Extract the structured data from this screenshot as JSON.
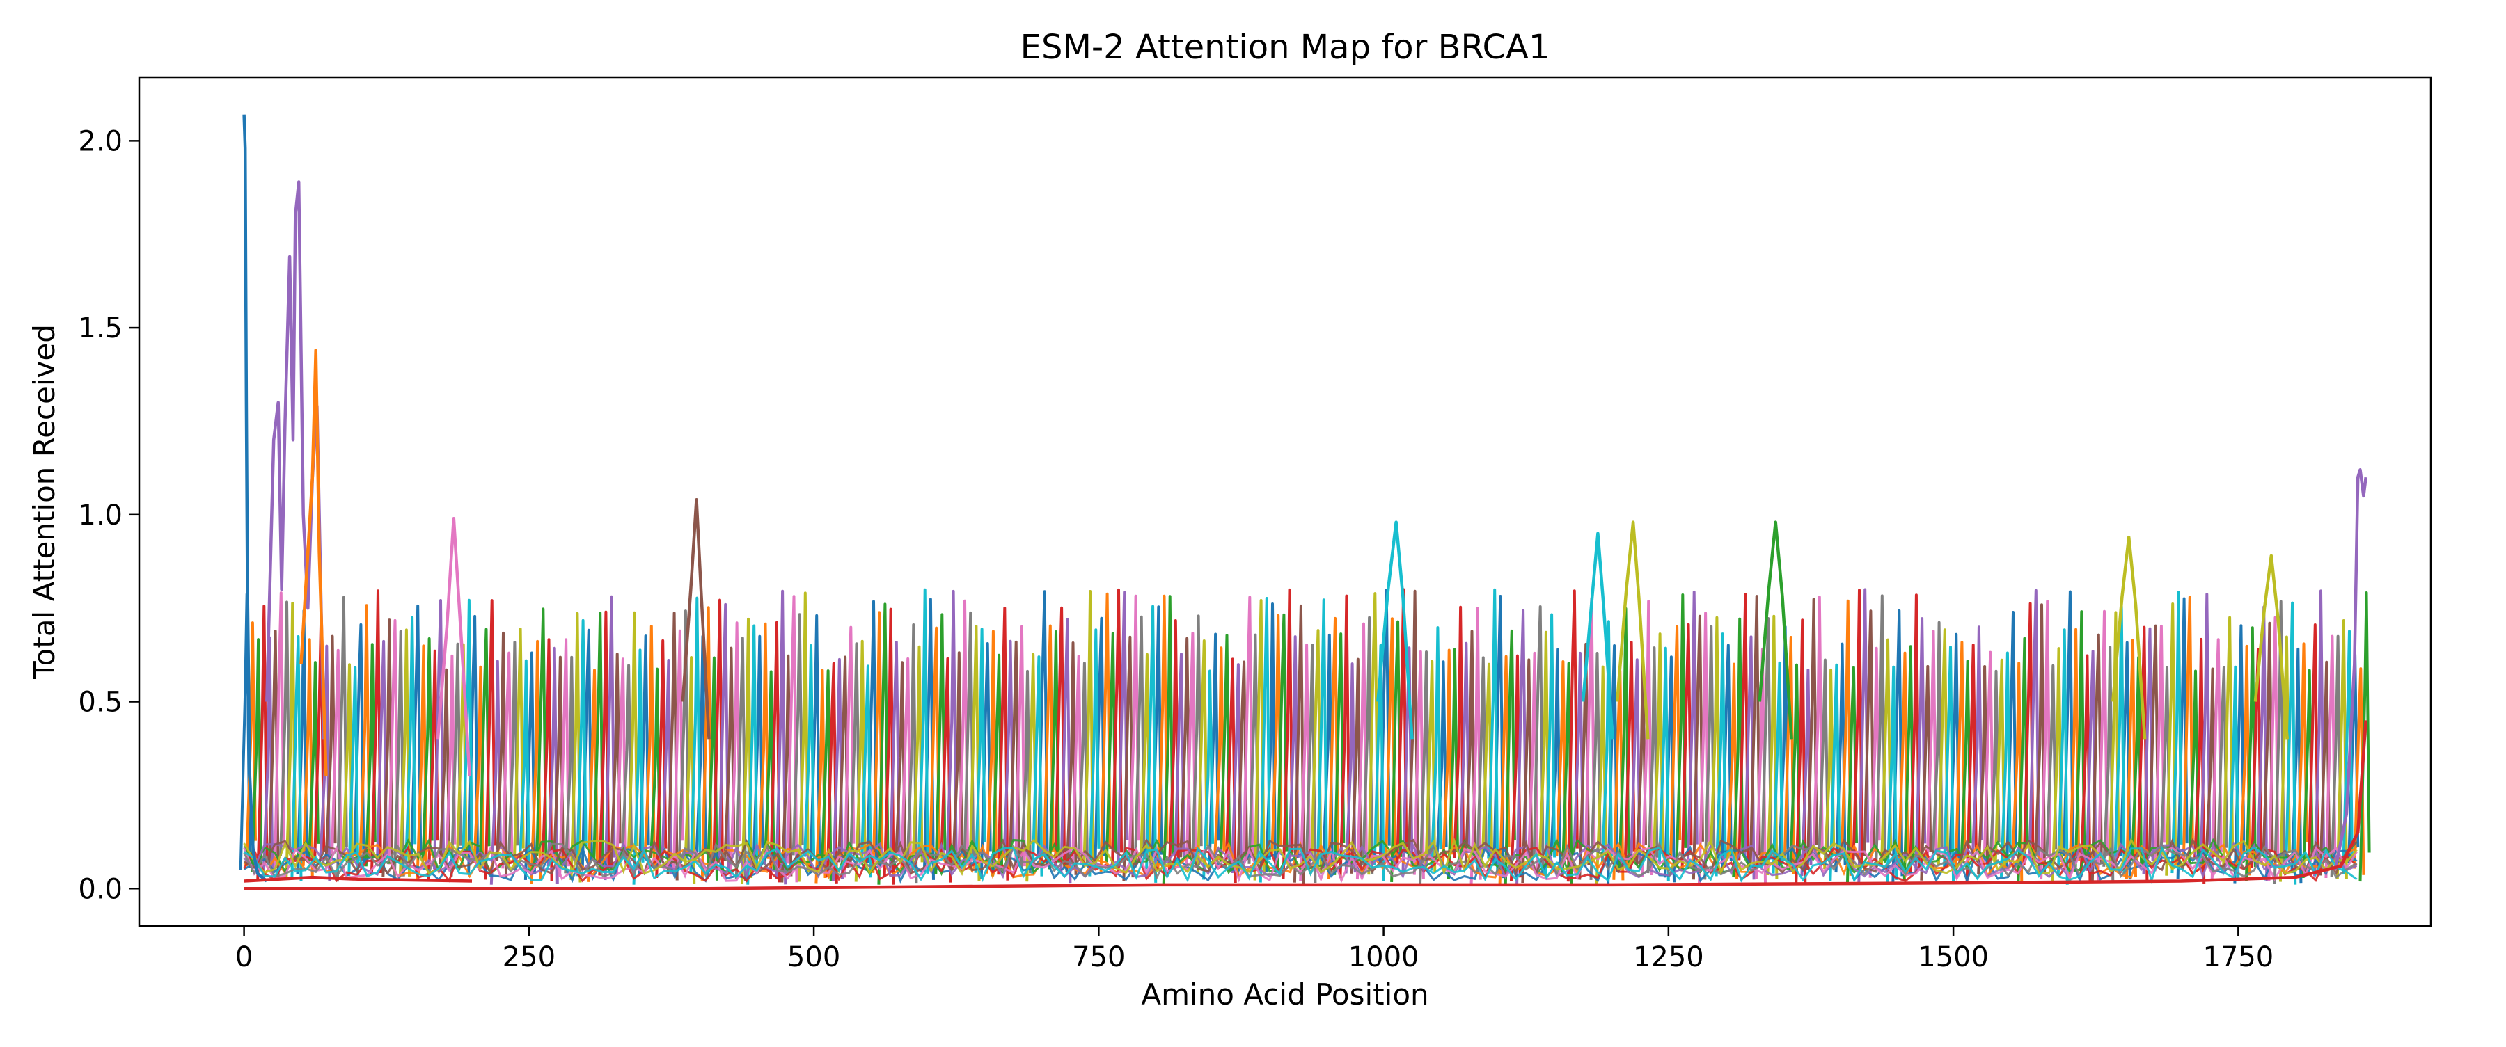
{
  "chart_data": {
    "type": "line",
    "title": "ESM-2 Attention Map for BRCA1",
    "xlabel": "Amino Acid Position",
    "ylabel": "Total Attention Received",
    "xlim": [
      -92,
      1919
    ],
    "ylim": [
      -0.1,
      2.17
    ],
    "xticks": [
      0,
      250,
      500,
      750,
      1000,
      1250,
      1500,
      1750
    ],
    "xtick_labels": [
      "0",
      "250",
      "500",
      "750",
      "1000",
      "1250",
      "1500",
      "1750"
    ],
    "yticks": [
      0.0,
      0.5,
      1.0,
      1.5,
      2.0
    ],
    "ytick_labels": [
      "0.0",
      "0.5",
      "1.0",
      "1.5",
      "2.0"
    ],
    "grid": false,
    "legend": "none",
    "sequence_length": 1863,
    "palette": [
      "#1f77b4",
      "#ff7f0e",
      "#2ca02c",
      "#d62728",
      "#9467bd",
      "#8c564b",
      "#e377c2",
      "#7f7f7f",
      "#bcbd22",
      "#17becf"
    ],
    "baseline_level": 0.01,
    "typical_peak_range": [
      0.58,
      0.8
    ],
    "series": [
      {
        "color": "#1f77b4",
        "x": [
          0,
          1,
          2,
          3,
          5,
          8,
          12,
          20
        ],
        "y": [
          2.07,
          1.98,
          1.3,
          0.8,
          0.3,
          0.1,
          0.04,
          0.02
        ]
      },
      {
        "color": "#9467bd",
        "x": [
          20,
          26,
          30,
          33,
          36,
          40,
          43,
          45,
          48,
          52,
          56,
          60,
          64,
          70
        ],
        "y": [
          0.5,
          1.2,
          1.3,
          0.8,
          1.25,
          1.69,
          1.2,
          1.8,
          1.89,
          1.0,
          0.75,
          1.1,
          1.29,
          0.4
        ]
      },
      {
        "color": "#ff7f0e",
        "x": [
          50,
          56,
          60,
          63,
          66,
          72
        ],
        "y": [
          0.6,
          0.9,
          1.1,
          1.44,
          0.9,
          0.3
        ]
      },
      {
        "color": "#e377c2",
        "x": [
          170,
          178,
          184,
          190,
          198
        ],
        "y": [
          0.4,
          0.7,
          0.99,
          0.7,
          0.3
        ]
      },
      {
        "color": "#8c564b",
        "x": [
          385,
          392,
          397,
          401,
          408
        ],
        "y": [
          0.5,
          0.8,
          1.04,
          0.8,
          0.4
        ]
      },
      {
        "color": "#17becf",
        "x": [
          995,
          1004,
          1011,
          1017,
          1025
        ],
        "y": [
          0.5,
          0.8,
          0.98,
          0.78,
          0.4
        ]
      },
      {
        "color": "#17becf",
        "x": [
          1175,
          1183,
          1188,
          1193,
          1201
        ],
        "y": [
          0.5,
          0.78,
          0.95,
          0.76,
          0.4
        ]
      },
      {
        "color": "#bcbd22",
        "x": [
          1205,
          1213,
          1219,
          1224,
          1232
        ],
        "y": [
          0.5,
          0.8,
          0.98,
          0.78,
          0.4
        ]
      },
      {
        "color": "#2ca02c",
        "x": [
          1330,
          1338,
          1344,
          1350,
          1358
        ],
        "y": [
          0.5,
          0.8,
          0.98,
          0.78,
          0.4
        ]
      },
      {
        "color": "#bcbd22",
        "x": [
          1640,
          1648,
          1654,
          1660,
          1668
        ],
        "y": [
          0.5,
          0.78,
          0.94,
          0.76,
          0.4
        ]
      },
      {
        "color": "#bcbd22",
        "x": [
          1765,
          1773,
          1779,
          1785,
          1793
        ],
        "y": [
          0.5,
          0.75,
          0.89,
          0.72,
          0.4
        ]
      },
      {
        "color": "#9467bd",
        "x": [
          1835,
          1845,
          1852,
          1855,
          1857,
          1860,
          1862
        ],
        "y": [
          0.05,
          0.2,
          0.6,
          1.1,
          1.12,
          1.05,
          1.1
        ]
      },
      {
        "color": "#d62728",
        "x": [
          0,
          400,
          800,
          1200,
          1500,
          1700,
          1800,
          1840,
          1855,
          1862
        ],
        "y": [
          0.0,
          0.0,
          0.01,
          0.01,
          0.015,
          0.02,
          0.03,
          0.06,
          0.15,
          0.45
        ]
      },
      {
        "color": "#d62728",
        "x": [
          0,
          30,
          60,
          100,
          200
        ],
        "y": [
          0.02,
          0.025,
          0.03,
          0.025,
          0.02
        ]
      }
    ]
  }
}
